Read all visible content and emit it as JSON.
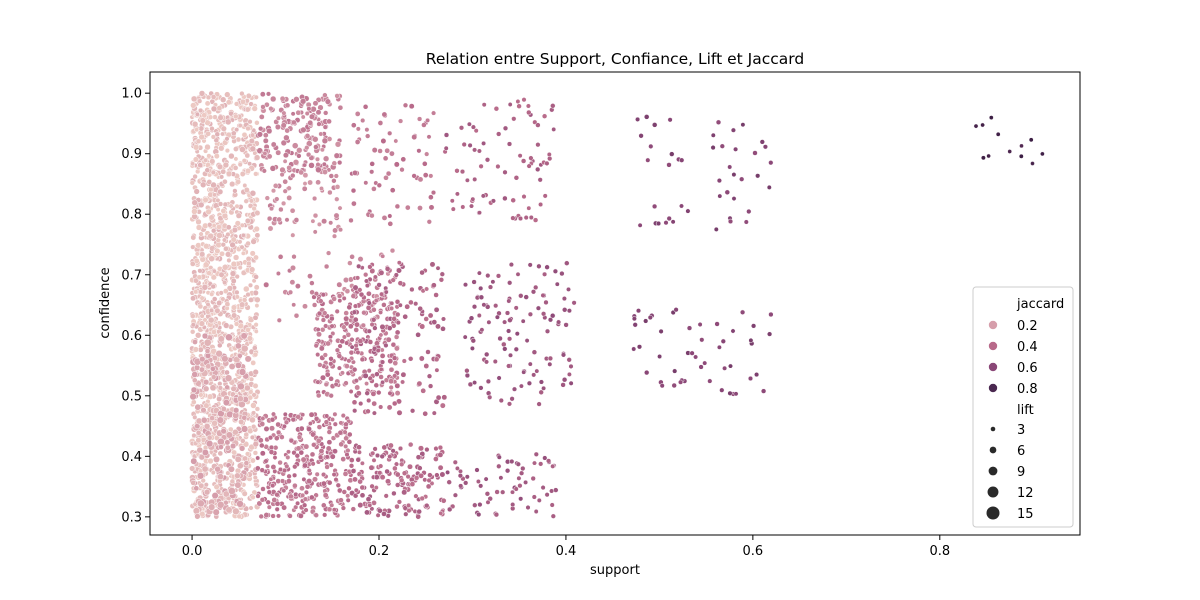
{
  "chart_data": {
    "type": "scatter",
    "title": "Relation entre Support, Confiance, Lift et Jaccard",
    "xlabel": "support",
    "ylabel": "confidence",
    "xlim": [
      -0.045,
      0.95
    ],
    "ylim": [
      0.27,
      1.035
    ],
    "xticks": [
      0.0,
      0.2,
      0.4,
      0.6,
      0.8
    ],
    "xtick_labels": [
      "0.0",
      "0.2",
      "0.4",
      "0.6",
      "0.8"
    ],
    "yticks": [
      0.3,
      0.4,
      0.5,
      0.6,
      0.7,
      0.8,
      0.9,
      1.0
    ],
    "ytick_labels": [
      "0.3",
      "0.4",
      "0.5",
      "0.6",
      "0.7",
      "0.8",
      "0.9",
      "1.0"
    ],
    "grid": false,
    "legend": {
      "placement": "lower-right",
      "hue_title": "jaccard",
      "hue_entries": [
        {
          "label": "0.2",
          "value": 0.2,
          "color": "#d69eab"
        },
        {
          "label": "0.4",
          "value": 0.4,
          "color": "#b86a8a"
        },
        {
          "label": "0.6",
          "value": 0.6,
          "color": "#8a4777"
        },
        {
          "label": "0.8",
          "value": 0.8,
          "color": "#4a2850"
        }
      ],
      "size_title": "lift",
      "size_entries": [
        {
          "label": "3",
          "value": 3
        },
        {
          "label": "6",
          "value": 6
        },
        {
          "label": "9",
          "value": 9
        },
        {
          "label": "12",
          "value": 12
        },
        {
          "label": "15",
          "value": 15
        }
      ]
    },
    "point_color": "#2a2a2a",
    "clusters": [
      {
        "x": [
          0.0,
          0.07
        ],
        "y": [
          0.3,
          1.0
        ],
        "count": 1400,
        "jaccard": 0.06,
        "lift": [
          3,
          6
        ]
      },
      {
        "x": [
          0.0,
          0.06
        ],
        "y": [
          0.3,
          0.6
        ],
        "count": 200,
        "jaccard": 0.15,
        "lift": [
          4,
          8
        ]
      },
      {
        "x": [
          0.07,
          0.16
        ],
        "y": [
          0.87,
          1.0
        ],
        "count": 180,
        "jaccard": 0.3,
        "lift": [
          3,
          6
        ]
      },
      {
        "x": [
          0.08,
          0.16
        ],
        "y": [
          0.76,
          0.87
        ],
        "count": 60,
        "jaccard": 0.27,
        "lift": [
          3,
          5
        ]
      },
      {
        "x": [
          0.07,
          0.22
        ],
        "y": [
          0.62,
          0.74
        ],
        "count": 60,
        "jaccard": 0.3,
        "lift": [
          3,
          5
        ]
      },
      {
        "x": [
          0.13,
          0.22
        ],
        "y": [
          0.5,
          0.67
        ],
        "count": 230,
        "jaccard": 0.35,
        "lift": [
          3,
          5
        ]
      },
      {
        "x": [
          0.07,
          0.17
        ],
        "y": [
          0.3,
          0.47
        ],
        "count": 330,
        "jaccard": 0.36,
        "lift": [
          3,
          5
        ]
      },
      {
        "x": [
          0.17,
          0.26
        ],
        "y": [
          0.78,
          0.98
        ],
        "count": 70,
        "jaccard": 0.35,
        "lift": [
          3,
          5
        ]
      },
      {
        "x": [
          0.17,
          0.27
        ],
        "y": [
          0.47,
          0.72
        ],
        "count": 160,
        "jaccard": 0.42,
        "lift": [
          3,
          5
        ]
      },
      {
        "x": [
          0.17,
          0.27
        ],
        "y": [
          0.3,
          0.42
        ],
        "count": 170,
        "jaccard": 0.42,
        "lift": [
          3,
          5
        ]
      },
      {
        "x": [
          0.27,
          0.39
        ],
        "y": [
          0.79,
          0.99
        ],
        "count": 80,
        "jaccard": 0.45,
        "lift": [
          3,
          4
        ]
      },
      {
        "x": [
          0.29,
          0.41
        ],
        "y": [
          0.48,
          0.72
        ],
        "count": 120,
        "jaccard": 0.52,
        "lift": [
          3,
          4
        ]
      },
      {
        "x": [
          0.27,
          0.39
        ],
        "y": [
          0.3,
          0.41
        ],
        "count": 70,
        "jaccard": 0.5,
        "lift": [
          3,
          4
        ]
      },
      {
        "x": [
          0.47,
          0.62
        ],
        "y": [
          0.77,
          0.97
        ],
        "count": 45,
        "jaccard": 0.62,
        "lift": [
          3,
          4
        ]
      },
      {
        "x": [
          0.47,
          0.62
        ],
        "y": [
          0.5,
          0.65
        ],
        "count": 50,
        "jaccard": 0.62,
        "lift": [
          3,
          4
        ]
      },
      {
        "x": [
          0.83,
          0.91
        ],
        "y": [
          0.87,
          0.97
        ],
        "count": 12,
        "jaccard": 0.87,
        "lift": [
          2.5,
          3
        ]
      }
    ]
  }
}
